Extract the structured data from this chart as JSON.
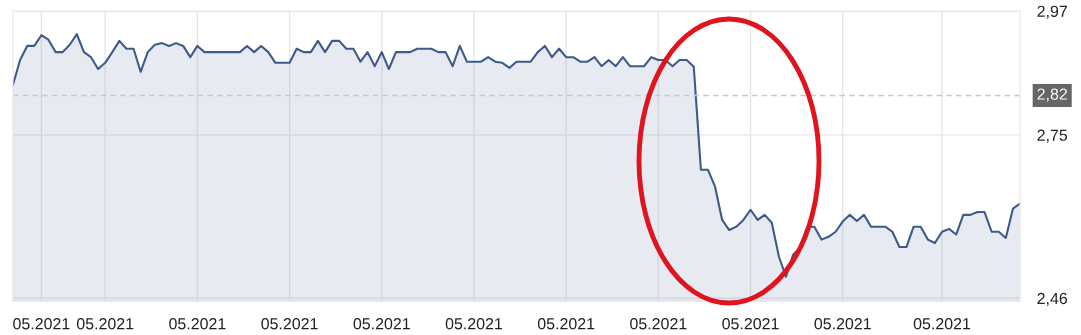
{
  "chart_data": {
    "type": "area",
    "categories": [
      null,
      null,
      null,
      null,
      "05.2021",
      null,
      null,
      null,
      null,
      null,
      null,
      null,
      null,
      "05.2021",
      null,
      null,
      null,
      null,
      null,
      null,
      null,
      null,
      null,
      null,
      null,
      null,
      "05.2021",
      null,
      null,
      null,
      null,
      null,
      null,
      null,
      null,
      null,
      null,
      null,
      null,
      "05.2021",
      null,
      null,
      null,
      null,
      null,
      null,
      null,
      null,
      null,
      null,
      null,
      null,
      "05.2021",
      null,
      null,
      null,
      null,
      null,
      null,
      null,
      null,
      null,
      null,
      null,
      null,
      "05.2021",
      null,
      null,
      null,
      null,
      null,
      null,
      null,
      null,
      null,
      null,
      null,
      null,
      "05.2021",
      null,
      null,
      null,
      null,
      null,
      null,
      null,
      null,
      null,
      null,
      null,
      null,
      "05.2021",
      null,
      null,
      null,
      null,
      null,
      null,
      null,
      null,
      null,
      null,
      null,
      null,
      "05.2021",
      null,
      null,
      null,
      null,
      null,
      null,
      null,
      null,
      null,
      null,
      null,
      null,
      "05.2021",
      null,
      null,
      null,
      null,
      null,
      null,
      null,
      null,
      null,
      null,
      null,
      null,
      null,
      "05.2021",
      null,
      null,
      null,
      null,
      null,
      null,
      null,
      null,
      null,
      null,
      null
    ],
    "series": [
      {
        "color": "#3d5a8a",
        "values": [
          2.839,
          2.883,
          2.908,
          2.908,
          2.927,
          2.919,
          2.897,
          2.897,
          2.91,
          2.929,
          2.897,
          2.888,
          2.867,
          2.878,
          2.897,
          2.917,
          2.903,
          2.903,
          2.862,
          2.897,
          2.91,
          2.913,
          2.908,
          2.913,
          2.908,
          2.888,
          2.908,
          2.897,
          2.897,
          2.897,
          2.897,
          2.897,
          2.897,
          2.908,
          2.897,
          2.908,
          2.897,
          2.878,
          2.878,
          2.878,
          2.903,
          2.897,
          2.897,
          2.917,
          2.897,
          2.917,
          2.917,
          2.903,
          2.903,
          2.88,
          2.897,
          2.872,
          2.897,
          2.867,
          2.897,
          2.897,
          2.897,
          2.903,
          2.903,
          2.903,
          2.897,
          2.897,
          2.872,
          2.908,
          2.88,
          2.88,
          2.88,
          2.888,
          2.88,
          2.878,
          2.869,
          2.88,
          2.88,
          2.88,
          2.897,
          2.908,
          2.888,
          2.903,
          2.888,
          2.888,
          2.88,
          2.88,
          2.888,
          2.872,
          2.883,
          2.872,
          2.888,
          2.872,
          2.872,
          2.872,
          2.888,
          2.883,
          2.883,
          2.872,
          2.883,
          2.883,
          2.871,
          2.688,
          2.688,
          2.658,
          2.599,
          2.581,
          2.587,
          2.599,
          2.617,
          2.599,
          2.608,
          2.594,
          2.534,
          2.498,
          2.537,
          2.55,
          2.587,
          2.587,
          2.564,
          2.569,
          2.578,
          2.596,
          2.608,
          2.597,
          2.608,
          2.587,
          2.587,
          2.587,
          2.578,
          2.551,
          2.551,
          2.587,
          2.587,
          2.564,
          2.558,
          2.578,
          2.583,
          2.573,
          2.608,
          2.608,
          2.613,
          2.613,
          2.578,
          2.578,
          2.567,
          2.619,
          2.628
        ]
      }
    ],
    "ylim": [
      2.455,
      2.97
    ],
    "yticks": [
      {
        "value": 2.46,
        "label": "2,46"
      },
      {
        "value": 2.75,
        "label": "2,75"
      },
      {
        "value": 2.97,
        "label": "2,97"
      }
    ],
    "ref_lines": [
      {
        "axis": "y",
        "value": 2.82,
        "label": "2,82",
        "color": "#c8c8c8",
        "line_style": "dashed"
      }
    ],
    "grid": true,
    "legend": false
  }
}
